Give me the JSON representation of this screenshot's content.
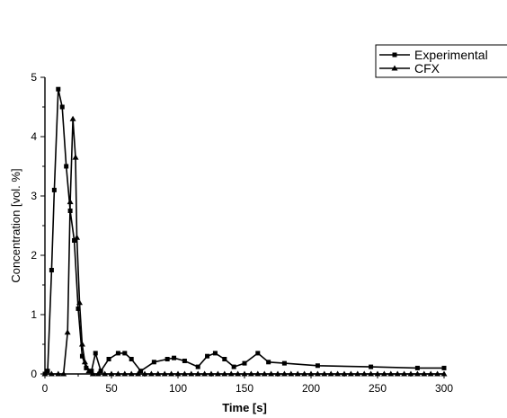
{
  "chart_data": {
    "type": "line",
    "title": "",
    "xlabel": "Time [s]",
    "ylabel": "Concentration [vol. %]",
    "xlim": [
      0,
      300
    ],
    "ylim": [
      0,
      5
    ],
    "xticks": [
      "0",
      "50",
      "100",
      "150",
      "200",
      "250",
      "300"
    ],
    "yticks": [
      "0",
      "1",
      "2",
      "3",
      "4",
      "5"
    ],
    "grid": false,
    "legend_position": "top-right",
    "series": [
      {
        "name": "Experimental",
        "marker": "square",
        "color": "#000000",
        "points": [
          [
            0,
            0
          ],
          [
            2,
            0.05
          ],
          [
            5,
            1.75
          ],
          [
            7,
            3.1
          ],
          [
            10,
            4.8
          ],
          [
            13,
            4.5
          ],
          [
            16,
            3.5
          ],
          [
            19,
            2.75
          ],
          [
            22,
            2.25
          ],
          [
            25,
            1.1
          ],
          [
            28,
            0.3
          ],
          [
            31,
            0.1
          ],
          [
            35,
            0.05
          ],
          [
            38,
            0.35
          ],
          [
            42,
            0.05
          ],
          [
            48,
            0.25
          ],
          [
            55,
            0.35
          ],
          [
            60,
            0.35
          ],
          [
            65,
            0.25
          ],
          [
            72,
            0.05
          ],
          [
            82,
            0.2
          ],
          [
            92,
            0.25
          ],
          [
            97,
            0.27
          ],
          [
            105,
            0.22
          ],
          [
            115,
            0.12
          ],
          [
            122,
            0.3
          ],
          [
            128,
            0.35
          ],
          [
            135,
            0.25
          ],
          [
            142,
            0.12
          ],
          [
            150,
            0.18
          ],
          [
            160,
            0.35
          ],
          [
            168,
            0.2
          ],
          [
            180,
            0.18
          ],
          [
            205,
            0.14
          ],
          [
            245,
            0.12
          ],
          [
            280,
            0.1
          ],
          [
            300,
            0.1
          ]
        ]
      },
      {
        "name": "CFX",
        "marker": "triangle",
        "color": "#000000",
        "points": [
          [
            0,
            0
          ],
          [
            5,
            0
          ],
          [
            10,
            0
          ],
          [
            14,
            0
          ],
          [
            17,
            0.7
          ],
          [
            19,
            2.9
          ],
          [
            21,
            4.3
          ],
          [
            23,
            3.65
          ],
          [
            24,
            2.3
          ],
          [
            26,
            1.2
          ],
          [
            28,
            0.5
          ],
          [
            30,
            0.2
          ],
          [
            33,
            0.05
          ],
          [
            36,
            0
          ],
          [
            40,
            0
          ],
          [
            45,
            0
          ],
          [
            50,
            0
          ],
          [
            55,
            0
          ],
          [
            60,
            0
          ],
          [
            65,
            0
          ],
          [
            70,
            0
          ],
          [
            75,
            0
          ],
          [
            80,
            0
          ],
          [
            85,
            0
          ],
          [
            90,
            0
          ],
          [
            95,
            0
          ],
          [
            100,
            0
          ],
          [
            105,
            0
          ],
          [
            110,
            0
          ],
          [
            115,
            0
          ],
          [
            120,
            0
          ],
          [
            125,
            0
          ],
          [
            130,
            0
          ],
          [
            135,
            0
          ],
          [
            140,
            0
          ],
          [
            145,
            0
          ],
          [
            150,
            0
          ],
          [
            155,
            0
          ],
          [
            160,
            0
          ],
          [
            165,
            0
          ],
          [
            170,
            0
          ],
          [
            175,
            0
          ],
          [
            180,
            0
          ],
          [
            185,
            0
          ],
          [
            190,
            0
          ],
          [
            195,
            0
          ],
          [
            200,
            0
          ],
          [
            205,
            0
          ],
          [
            210,
            0
          ],
          [
            215,
            0
          ],
          [
            220,
            0
          ],
          [
            225,
            0
          ],
          [
            230,
            0
          ],
          [
            235,
            0
          ],
          [
            240,
            0
          ],
          [
            245,
            0
          ],
          [
            250,
            0
          ],
          [
            255,
            0
          ],
          [
            260,
            0
          ],
          [
            265,
            0
          ],
          [
            270,
            0
          ],
          [
            275,
            0
          ],
          [
            280,
            0
          ],
          [
            285,
            0
          ],
          [
            290,
            0
          ],
          [
            295,
            0
          ],
          [
            300,
            0
          ]
        ]
      }
    ]
  }
}
